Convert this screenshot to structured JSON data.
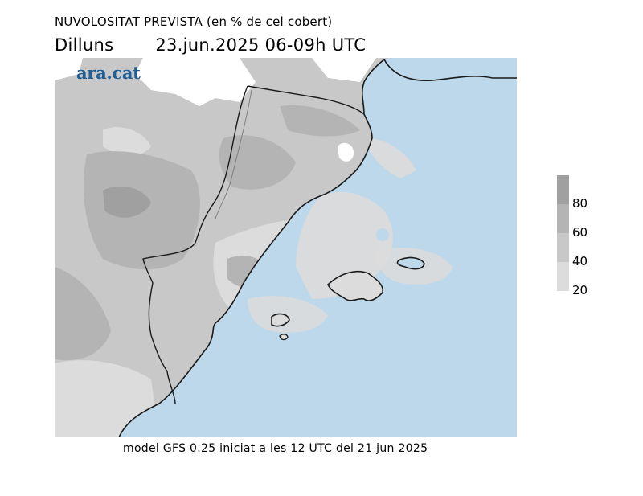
{
  "header": {
    "title": "NUVOLOSITAT PREVISTA (en % de cel cobert)",
    "day": "Dilluns",
    "datetime": "23.jun.2025 06-09h UTC"
  },
  "logo": {
    "text": "ara.cat",
    "color": "#1f5d93"
  },
  "legend": {
    "labels": [
      "80",
      "60",
      "40",
      "20"
    ],
    "colors": [
      "#a0a0a0",
      "#b4b4b4",
      "#c8c8c8",
      "#dcdcdc"
    ]
  },
  "map": {
    "sea_color": "#bcd8ea",
    "land_base_color": "#c8c8c8",
    "coastline_color": "#1a1a1a"
  },
  "footer": {
    "text": "model GFS 0.25 iniciat a les 12 UTC del 21 jun 2025"
  }
}
